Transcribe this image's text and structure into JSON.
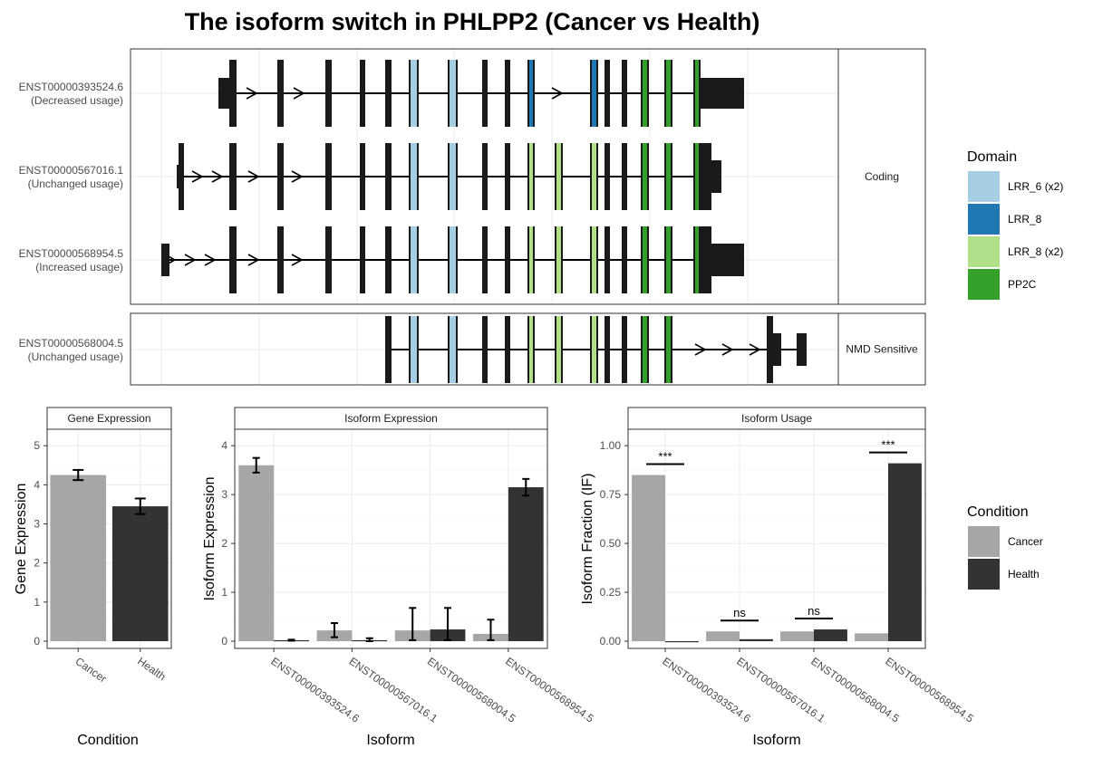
{
  "title": "The isoform switch in PHLPP2 (Cancer vs Health)",
  "colors": {
    "exon": "#1a1a1a",
    "LRR_6 (x2)": "#a6cee3",
    "LRR_8": "#1f78b4",
    "LRR_8 (x2)": "#b2df8a",
    "PP2C": "#33a02c",
    "Cancer": "#a6a6a6",
    "Health": "#333333",
    "grid": "#ebebeb",
    "panel_border": "#333333"
  },
  "structure": {
    "facets": [
      {
        "label": "Coding",
        "tracks": [
          0,
          1,
          2
        ]
      },
      {
        "label": "NMD Sensitive",
        "tracks": [
          3
        ]
      }
    ],
    "tracks": [
      {
        "id": "ENST00000393524.6",
        "usage": "(Decreased usage)"
      },
      {
        "id": "ENST00000567016.1",
        "usage": "(Unchanged usage)"
      },
      {
        "id": "ENST00000568954.5",
        "usage": "(Increased usage)"
      },
      {
        "id": "ENST00000568004.5",
        "usage": "(Unchanged usage)"
      }
    ],
    "domain_legend": {
      "title": "Domain",
      "items": [
        "LRR_6 (x2)",
        "LRR_8",
        "LRR_8 (x2)",
        "PP2C"
      ]
    }
  },
  "chart_data": [
    {
      "type": "bar",
      "strip": "Gene Expression",
      "xlabel": "Condition",
      "ylabel": "Gene Expression",
      "ylim": [
        0,
        5
      ],
      "yticks": [
        0,
        1,
        2,
        3,
        4,
        5
      ],
      "categories": [
        "Cancer",
        "Health"
      ],
      "values": [
        4.25,
        3.45
      ],
      "errors": [
        [
          4.12,
          4.38
        ],
        [
          3.25,
          3.65
        ]
      ],
      "grid": true
    },
    {
      "type": "bar",
      "strip": "Isoform Expression",
      "xlabel": "Isoform",
      "ylabel": "Isoform Expression",
      "ylim": [
        0,
        4
      ],
      "yticks": [
        0,
        1,
        2,
        3,
        4
      ],
      "categories": [
        "ENST00000393524.6",
        "ENST00000567016.1",
        "ENST00000568004.5",
        "ENST00000568954.5"
      ],
      "series": [
        {
          "name": "Cancer",
          "values": [
            3.6,
            0.22,
            0.22,
            0.15
          ],
          "errors": [
            [
              3.45,
              3.75
            ],
            [
              0.08,
              0.37
            ],
            [
              0.02,
              0.68
            ],
            [
              0.02,
              0.44
            ]
          ]
        },
        {
          "name": "Health",
          "values": [
            0.02,
            0.02,
            0.24,
            3.15
          ],
          "errors": [
            [
              0.01,
              0.03
            ],
            [
              0.0,
              0.06
            ],
            [
              0.02,
              0.68
            ],
            [
              2.98,
              3.32
            ]
          ]
        }
      ],
      "grid": true
    },
    {
      "type": "bar",
      "strip": "Isoform Usage",
      "xlabel": "Isoform",
      "ylabel": "Isoform Fraction (IF)",
      "ylim": [
        0,
        1.0
      ],
      "yticks": [
        "0.00",
        "0.25",
        "0.50",
        "0.75",
        "1.00"
      ],
      "categories": [
        "ENST00000393524.6",
        "ENST00000567016.1",
        "ENST00000568004.5",
        "ENST00000568954.5"
      ],
      "series": [
        {
          "name": "Cancer",
          "values": [
            0.85,
            0.05,
            0.05,
            0.04
          ]
        },
        {
          "name": "Health",
          "values": [
            0.0,
            0.01,
            0.06,
            0.91
          ]
        }
      ],
      "significance": [
        "***",
        "ns",
        "ns",
        "***"
      ],
      "grid": true
    }
  ],
  "condition_legend": {
    "title": "Condition",
    "items": [
      "Cancer",
      "Health"
    ]
  }
}
